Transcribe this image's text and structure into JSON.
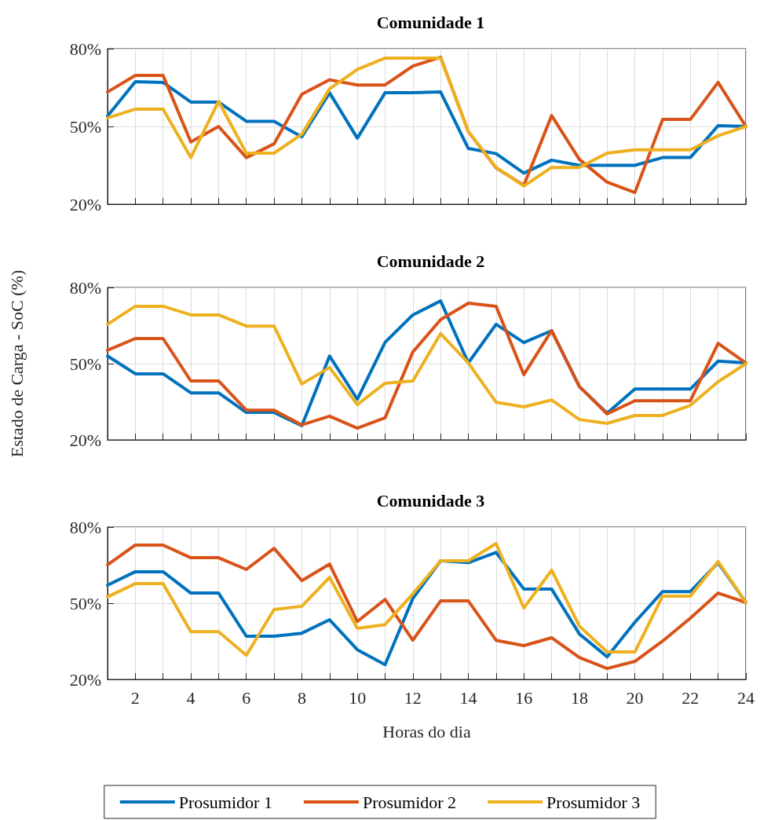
{
  "chart_data": [
    {
      "type": "line",
      "title": "Comunidade 1",
      "x": [
        1,
        2,
        3,
        4,
        5,
        6,
        7,
        8,
        9,
        10,
        11,
        12,
        13,
        14,
        15,
        16,
        17,
        18,
        19,
        20,
        21,
        22,
        23,
        24
      ],
      "series": [
        {
          "color": "#0072bd",
          "values": [
            54,
            67.3,
            67,
            59.4,
            59.4,
            52,
            52,
            46,
            63,
            45.5,
            63,
            63,
            63.3,
            41.5,
            39.5,
            32,
            37,
            35,
            35,
            35,
            38,
            38,
            50.3,
            50
          ]
        },
        {
          "color": "#d95319",
          "values": [
            63.3,
            69.7,
            69.7,
            44,
            50,
            38,
            43.3,
            62.4,
            68,
            66,
            66,
            73.3,
            76.7,
            48,
            34,
            27.3,
            54.2,
            37.3,
            28.5,
            24.5,
            52.7,
            52.7,
            67,
            50
          ]
        },
        {
          "color": "#edb120",
          "values": [
            53.3,
            56.7,
            56.7,
            38,
            59.7,
            39.7,
            39.7,
            47,
            64.5,
            72,
            76.4,
            76.4,
            76.4,
            48,
            34.2,
            27,
            34.2,
            34.2,
            39.7,
            41,
            41,
            41,
            46.4,
            50
          ]
        }
      ],
      "xlim": [
        1,
        24
      ],
      "xticks": [
        {
          "value": 1,
          "label": null
        },
        2,
        {
          "value": 3,
          "label": null
        },
        4,
        {
          "value": 5,
          "label": null
        },
        6,
        {
          "value": 7,
          "label": null
        },
        8,
        {
          "value": 9,
          "label": null
        },
        10,
        {
          "value": 11,
          "label": null
        },
        12,
        {
          "value": 13,
          "label": null
        },
        14,
        {
          "value": 15,
          "label": null
        },
        16,
        {
          "value": 17,
          "label": null
        },
        18,
        {
          "value": 19,
          "label": null
        },
        20,
        {
          "value": 21,
          "label": null
        },
        22,
        {
          "value": 23,
          "label": null
        },
        24
      ],
      "ylim": [
        20,
        80
      ],
      "yticks": [
        {
          "value": 20,
          "label": "20%"
        },
        {
          "value": 50,
          "label": "50%"
        },
        {
          "value": 80,
          "label": "80%"
        }
      ],
      "tick_labels": "y",
      "grid": true,
      "marker": "none",
      "line_style": "solid"
    },
    {
      "type": "line",
      "title": "Comunidade 2",
      "ylabel": "Estado de Carga - SoC (%)",
      "x": [
        1,
        2,
        3,
        4,
        5,
        6,
        7,
        8,
        9,
        10,
        11,
        12,
        13,
        14,
        15,
        16,
        17,
        18,
        19,
        20,
        21,
        22,
        23,
        24
      ],
      "series": [
        {
          "color": "#0072bd",
          "values": [
            53,
            46,
            46,
            38.5,
            38.5,
            30.8,
            30.8,
            25.6,
            53,
            36,
            58.4,
            69.2,
            74.7,
            50.3,
            65.5,
            58.3,
            63,
            41,
            30.5,
            40,
            40,
            40,
            51,
            50.3
          ]
        },
        {
          "color": "#d95319",
          "values": [
            55.3,
            59.9,
            59.9,
            43.2,
            43.2,
            31.7,
            31.7,
            25.9,
            29.3,
            24.6,
            28.7,
            54.6,
            67.3,
            73.8,
            72.6,
            45.7,
            63,
            41,
            30.2,
            35.4,
            35.4,
            35.4,
            58,
            50.3
          ]
        },
        {
          "color": "#edb120",
          "values": [
            65.5,
            72.6,
            72.6,
            69.2,
            69.2,
            64.8,
            64.8,
            42,
            48.5,
            33.9,
            42.3,
            43.2,
            61.8,
            50.3,
            34.8,
            33,
            35.7,
            28,
            26.5,
            29.6,
            29.6,
            33.6,
            42.9,
            50
          ]
        }
      ],
      "xlim": [
        1,
        24
      ],
      "xticks": [
        {
          "value": 1,
          "label": null
        },
        2,
        {
          "value": 3,
          "label": null
        },
        4,
        {
          "value": 5,
          "label": null
        },
        6,
        {
          "value": 7,
          "label": null
        },
        8,
        {
          "value": 9,
          "label": null
        },
        10,
        {
          "value": 11,
          "label": null
        },
        12,
        {
          "value": 13,
          "label": null
        },
        14,
        {
          "value": 15,
          "label": null
        },
        16,
        {
          "value": 17,
          "label": null
        },
        18,
        {
          "value": 19,
          "label": null
        },
        20,
        {
          "value": 21,
          "label": null
        },
        22,
        {
          "value": 23,
          "label": null
        },
        24
      ],
      "ylim": [
        20,
        80
      ],
      "yticks": [
        {
          "value": 20,
          "label": "20%"
        },
        {
          "value": 50,
          "label": "50%"
        },
        {
          "value": 80,
          "label": "80%"
        }
      ],
      "tick_labels": "y",
      "grid": true,
      "marker": "none",
      "line_style": "solid"
    },
    {
      "type": "line",
      "title": "Comunidade 3",
      "xlabel": "Horas do dia",
      "x": [
        1,
        2,
        3,
        4,
        5,
        6,
        7,
        8,
        9,
        10,
        11,
        12,
        13,
        14,
        15,
        16,
        17,
        18,
        19,
        20,
        21,
        22,
        23,
        24
      ],
      "series": [
        {
          "name": "Prosumidor 1",
          "color": "#0072bd",
          "values": [
            57.1,
            62.4,
            62.4,
            54,
            54,
            37,
            37,
            38.2,
            43.5,
            31.7,
            25.8,
            51.9,
            66.7,
            66,
            70,
            55.6,
            55.6,
            37.9,
            28.9,
            42.5,
            54.6,
            54.6,
            66,
            50.3
          ]
        },
        {
          "name": "Prosumidor 2",
          "color": "#d95319",
          "values": [
            65.1,
            72.9,
            72.9,
            67.9,
            67.9,
            63.3,
            71.6,
            58.9,
            65.4,
            42.8,
            51.5,
            35.4,
            50.9,
            50.9,
            35.4,
            33.3,
            36.4,
            28.6,
            24.3,
            27.1,
            35.1,
            44.1,
            54,
            50.3
          ]
        },
        {
          "name": "Prosumidor 3",
          "color": "#edb120",
          "values": [
            52.5,
            57.7,
            57.7,
            38.8,
            38.8,
            29.5,
            47.5,
            48.8,
            60.2,
            40.1,
            41.6,
            53.7,
            66.7,
            66.7,
            73.5,
            48.1,
            63,
            41,
            30.8,
            30.8,
            52.8,
            52.8,
            66.4,
            50.3
          ]
        }
      ],
      "xlim": [
        1,
        24
      ],
      "xticks": [
        {
          "value": 1,
          "label": null
        },
        2,
        {
          "value": 3,
          "label": null
        },
        4,
        {
          "value": 5,
          "label": null
        },
        6,
        {
          "value": 7,
          "label": null
        },
        8,
        {
          "value": 9,
          "label": null
        },
        10,
        {
          "value": 11,
          "label": null
        },
        12,
        {
          "value": 13,
          "label": null
        },
        14,
        {
          "value": 15,
          "label": null
        },
        16,
        {
          "value": 17,
          "label": null
        },
        18,
        {
          "value": 19,
          "label": null
        },
        20,
        {
          "value": 21,
          "label": null
        },
        22,
        {
          "value": 23,
          "label": null
        },
        24
      ],
      "ylim": [
        20,
        80
      ],
      "yticks": [
        {
          "value": 20,
          "label": "20%"
        },
        {
          "value": 50,
          "label": "50%"
        },
        {
          "value": 80,
          "label": "80%"
        }
      ],
      "grid": true,
      "legend": "bottom",
      "marker": "none",
      "line_style": "solid"
    }
  ]
}
